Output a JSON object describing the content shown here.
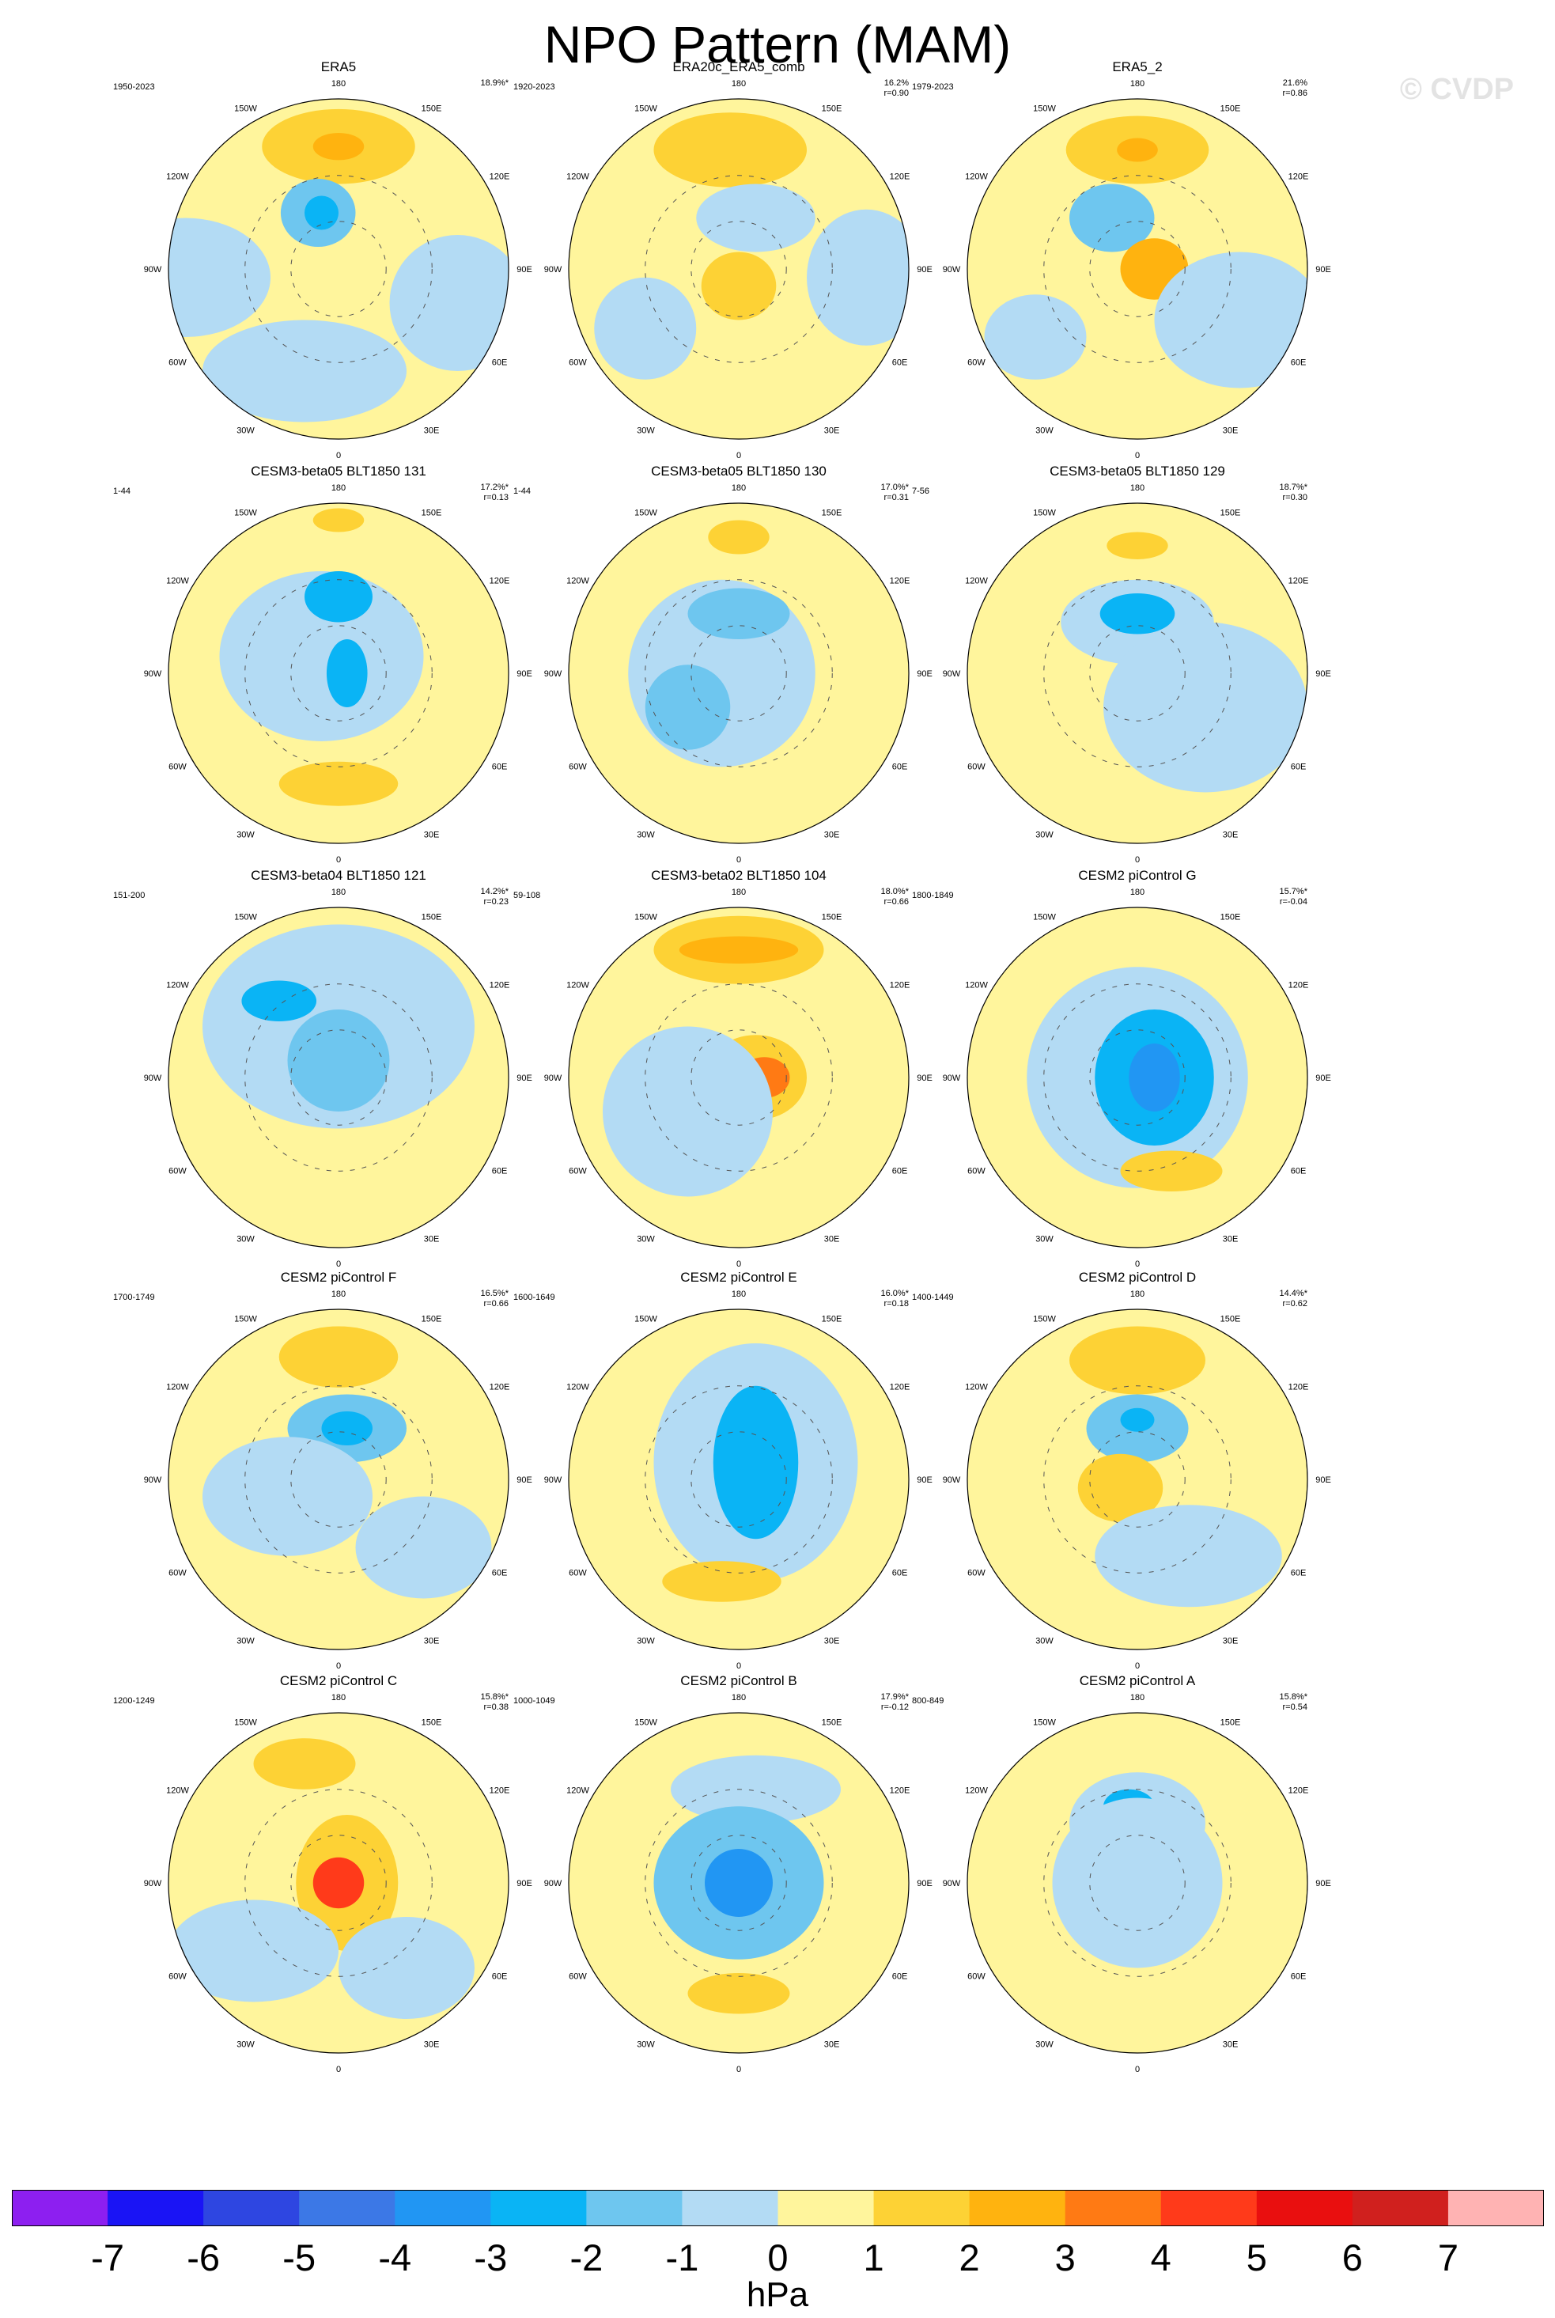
{
  "title": "NPO Pattern (MAM)",
  "watermark": "© CVDP",
  "longitude_labels": [
    "180",
    "150E",
    "120E",
    "90E",
    "60E",
    "30E",
    "0",
    "30W",
    "60W",
    "90W",
    "120W",
    "150W"
  ],
  "colors": {
    "ocean_bg": "#ffffff",
    "coast": "#555555",
    "levels": [
      "#8d1ff0",
      "#1a14f5",
      "#2e46e1",
      "#3c78e6",
      "#2196f3",
      "#0ab4f5",
      "#6ec6ef",
      "#b3dbf4",
      "#fff59c",
      "#fdd235",
      "#ffb30f",
      "#ff7a14",
      "#ff3a1a",
      "#e90f0f",
      "#d0201e",
      "#ffb3b3"
    ]
  },
  "chart_data": {
    "type": "heatmap",
    "projection": "polar stereographic (Northern Hemisphere)",
    "colorbar": {
      "unit": "hPa",
      "tick_labels": [
        "-7",
        "-6",
        "-5",
        "-4",
        "-3",
        "-2",
        "-1",
        "0",
        "1",
        "2",
        "3",
        "4",
        "5",
        "6",
        "7"
      ],
      "levels": [
        -7,
        -6,
        -5,
        -4,
        -3,
        -2,
        -1,
        0,
        1,
        2,
        3,
        4,
        5,
        6,
        7
      ]
    },
    "panels": [
      {
        "title": "ERA5",
        "years": "1950-2023",
        "pct": "18.9%*",
        "r": ""
      },
      {
        "title": "ERA20c_ERA5_comb",
        "years": "1920-2023",
        "pct": "16.2%",
        "r": "r=0.90"
      },
      {
        "title": "ERA5_2",
        "years": "1979-2023",
        "pct": "21.6%",
        "r": "r=0.86"
      },
      {
        "title": "CESM3-beta05 BLT1850 131",
        "years": "1-44",
        "pct": "17.2%*",
        "r": "r=0.13"
      },
      {
        "title": "CESM3-beta05 BLT1850 130",
        "years": "1-44",
        "pct": "17.0%*",
        "r": "r=0.31"
      },
      {
        "title": "CESM3-beta05 BLT1850 129",
        "years": "7-56",
        "pct": "18.7%*",
        "r": "r=0.30"
      },
      {
        "title": "CESM3-beta04 BLT1850 121",
        "years": "151-200",
        "pct": "14.2%*",
        "r": "r=0.23"
      },
      {
        "title": "CESM3-beta02 BLT1850 104",
        "years": "59-108",
        "pct": "18.0%*",
        "r": "r=0.66"
      },
      {
        "title": "CESM2 piControl G",
        "years": "1800-1849",
        "pct": "15.7%*",
        "r": "r=-0.04"
      },
      {
        "title": "CESM2 piControl F",
        "years": "1700-1749",
        "pct": "16.5%*",
        "r": "r=0.66"
      },
      {
        "title": "CESM2 piControl E",
        "years": "1600-1649",
        "pct": "16.0%*",
        "r": "r=0.18"
      },
      {
        "title": "CESM2 piControl D",
        "years": "1400-1449",
        "pct": "14.4%*",
        "r": "r=0.62"
      },
      {
        "title": "CESM2 piControl C",
        "years": "1200-1249",
        "pct": "15.8%*",
        "r": "r=0.38"
      },
      {
        "title": "CESM2 piControl B",
        "years": "1000-1049",
        "pct": "17.9%*",
        "r": "r=-0.12"
      },
      {
        "title": "CESM2 piControl A",
        "years": "800-849",
        "pct": "15.8%*",
        "r": "r=0.54"
      }
    ]
  }
}
